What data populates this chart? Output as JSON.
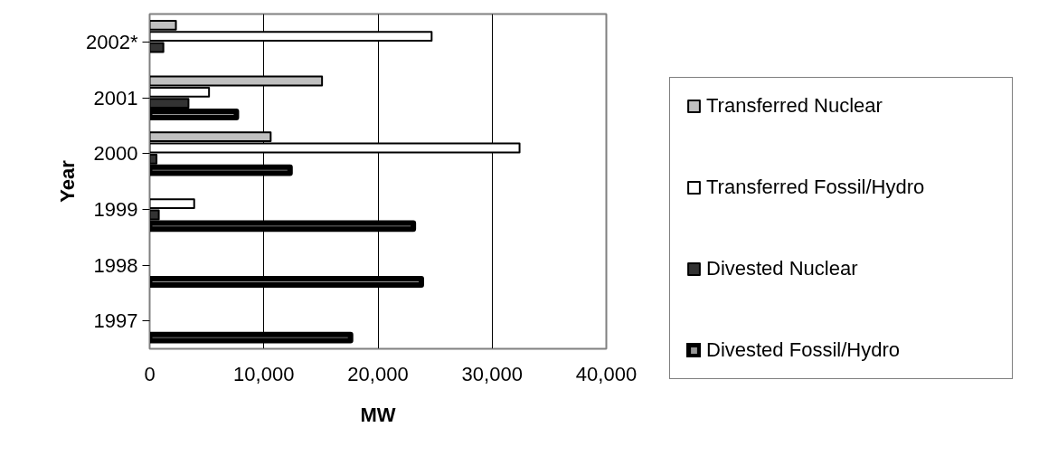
{
  "chart_data": {
    "type": "bar",
    "orientation": "horizontal",
    "xlabel": "MW",
    "ylabel": "Year",
    "categories": [
      "2002*",
      "2001",
      "2000",
      "1999",
      "1998",
      "1997"
    ],
    "series": [
      {
        "name": "Transferred Nuclear",
        "color": "#c0c0c0",
        "values": [
          2300,
          15100,
          10600,
          null,
          null,
          null
        ]
      },
      {
        "name": "Transferred Fossil/Hydro",
        "color": "#ffffff",
        "values": [
          24700,
          5200,
          32400,
          3900,
          null,
          null
        ]
      },
      {
        "name": "Divested Nuclear",
        "color": "#333333",
        "values": [
          1200,
          3400,
          600,
          800,
          null,
          null
        ]
      },
      {
        "name": "Divested Fossil/Hydro",
        "color": "#969696",
        "values": [
          null,
          7600,
          12300,
          23100,
          23800,
          17600
        ]
      }
    ],
    "xlim": [
      0,
      40000
    ],
    "xticks": [
      0,
      {
        "value": 10000,
        "label": "10,000"
      },
      {
        "value": 20000,
        "label": "20,000"
      },
      {
        "value": 30000,
        "label": "30,000"
      },
      {
        "value": 40000,
        "label": "40,000"
      }
    ],
    "grid": "x",
    "legend": "right"
  }
}
